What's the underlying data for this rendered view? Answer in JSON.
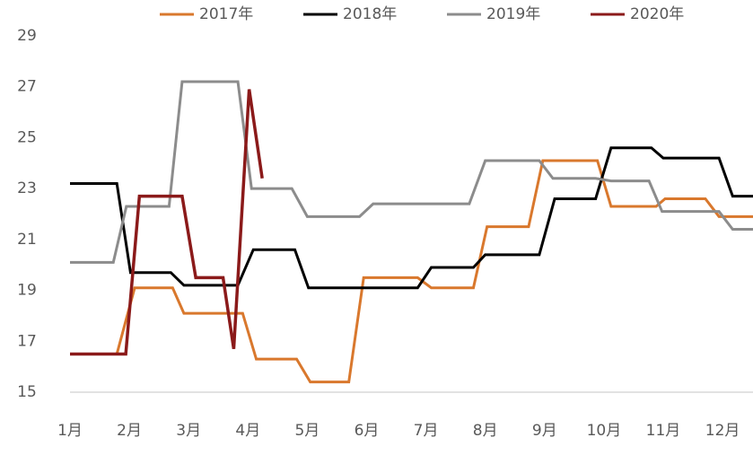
{
  "chart_data": {
    "type": "line",
    "ylim": [
      15,
      29
    ],
    "yticks": [
      15,
      17,
      19,
      21,
      23,
      25,
      27,
      29
    ],
    "xlim": [
      1,
      12.55
    ],
    "xticks": [
      {
        "value": 1,
        "label": "1月"
      },
      {
        "value": 2,
        "label": "2月"
      },
      {
        "value": 3,
        "label": "3月"
      },
      {
        "value": 4,
        "label": "4月"
      },
      {
        "value": 5,
        "label": "5月"
      },
      {
        "value": 6,
        "label": "6月"
      },
      {
        "value": 7,
        "label": "7月"
      },
      {
        "value": 8,
        "label": "8月"
      },
      {
        "value": 9,
        "label": "9月"
      },
      {
        "value": 10,
        "label": "10月"
      },
      {
        "value": 11,
        "label": "11月"
      },
      {
        "value": 12,
        "label": "12月"
      }
    ],
    "series": [
      {
        "name": "2017年",
        "color": "#d9782d",
        "x": [
          1,
          1.79,
          2.09,
          2.73,
          2.92,
          3.91,
          4.14,
          4.82,
          5.05,
          5.7,
          5.95,
          6.86,
          7.09,
          7.8,
          8.03,
          8.73,
          8.97,
          9.89,
          10.12,
          10.88,
          11.03,
          11.71,
          11.94,
          12.55
        ],
        "values": [
          16.5,
          16.5,
          19.1,
          19.1,
          18.1,
          18.1,
          16.3,
          16.3,
          15.4,
          15.4,
          19.5,
          19.5,
          19.1,
          19.1,
          21.5,
          21.5,
          24.1,
          24.1,
          22.3,
          22.3,
          22.6,
          22.6,
          21.9,
          21.9
        ]
      },
      {
        "name": "2018年",
        "color": "#000000",
        "x": [
          1,
          1.79,
          2.02,
          2.7,
          2.92,
          3.83,
          4.09,
          4.79,
          5.02,
          6.86,
          7.09,
          7.8,
          8.0,
          8.91,
          9.17,
          9.86,
          10.12,
          10.8,
          11.0,
          11.94,
          12.17,
          12.55
        ],
        "values": [
          23.2,
          23.2,
          19.7,
          19.7,
          19.2,
          19.2,
          20.6,
          20.6,
          19.1,
          19.1,
          19.9,
          19.9,
          20.4,
          20.4,
          22.6,
          22.6,
          24.6,
          24.6,
          24.2,
          24.2,
          22.7,
          22.7
        ]
      },
      {
        "name": "2019年",
        "color": "#8c8c8c",
        "x": [
          1,
          1.73,
          1.95,
          2.67,
          2.89,
          3.83,
          4.06,
          4.74,
          5.0,
          5.88,
          6.11,
          7.73,
          8.0,
          8.91,
          9.14,
          9.86,
          10.12,
          10.76,
          10.98,
          11.94,
          12.17,
          12.55
        ],
        "values": [
          20.1,
          20.1,
          22.3,
          22.3,
          27.2,
          27.2,
          23.0,
          23.0,
          21.9,
          21.9,
          22.4,
          22.4,
          24.1,
          24.1,
          23.4,
          23.4,
          23.3,
          23.3,
          22.1,
          22.1,
          21.4,
          21.4
        ]
      },
      {
        "name": "2020年",
        "color": "#8b1a1a",
        "x": [
          1,
          1.94,
          2.17,
          2.89,
          3.12,
          3.58,
          3.76,
          4.02,
          4.24
        ],
        "values": [
          16.5,
          16.5,
          22.7,
          22.7,
          19.5,
          19.5,
          16.7,
          26.9,
          23.4
        ]
      }
    ],
    "grid": false,
    "legend": "top"
  }
}
